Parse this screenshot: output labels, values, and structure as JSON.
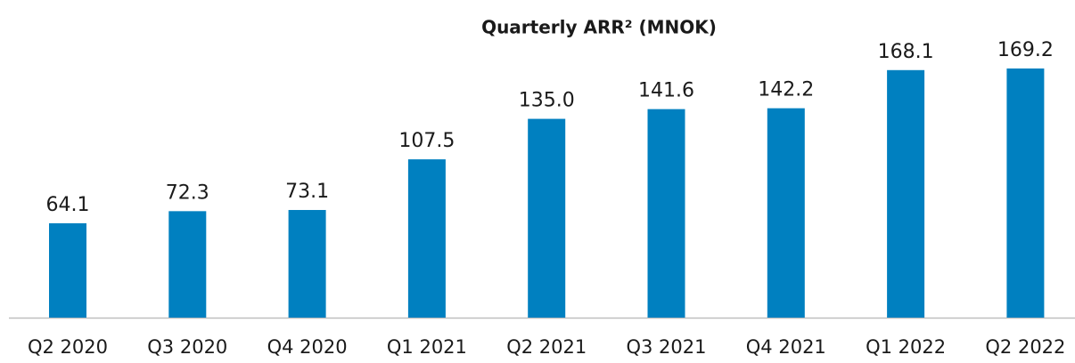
{
  "chart_data": {
    "type": "bar",
    "title": "Quarterly ARR² (MNOK)",
    "categories": [
      "Q2 2020",
      "Q3 2020",
      "Q4 2020",
      "Q1 2021",
      "Q2 2021",
      "Q3 2021",
      "Q4 2021",
      "Q1 2022",
      "Q2 2022"
    ],
    "values": [
      64.1,
      72.3,
      73.1,
      107.5,
      135,
      141.6,
      142.2,
      168.1,
      169.2
    ],
    "value_labels": [
      "64.1",
      "72.3",
      "73.1",
      "107.5",
      "135.0",
      "141.6",
      "142.2",
      "168.1",
      "169.2"
    ],
    "color": "#0080c0"
  }
}
